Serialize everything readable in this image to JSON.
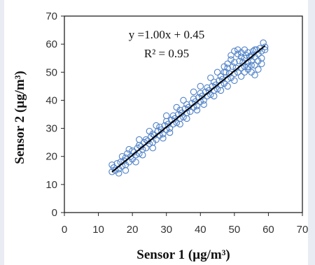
{
  "chart_data": {
    "type": "scatter",
    "xlabel": "Sensor 1 (µg/m³)",
    "ylabel": "Sensor 2 (µg/m³)",
    "xlim": [
      0,
      70
    ],
    "ylim": [
      0,
      70
    ],
    "xticks": [
      "0",
      "10",
      "20",
      "30",
      "40",
      "50",
      "60",
      "70"
    ],
    "yticks": [
      "0",
      "10",
      "20",
      "30",
      "40",
      "50",
      "60",
      "70"
    ],
    "grid": false,
    "fit": {
      "equation": "y =1.00x + 0.45",
      "r2_label": "R² = 0.95",
      "slope": 1.0,
      "intercept": 0.45,
      "x_range": [
        14,
        59
      ]
    },
    "series": [
      {
        "marker_color": "#4f81c7",
        "line_color": "#000000",
        "points": [
          [
            14,
            14.5
          ],
          [
            14.5,
            16
          ],
          [
            15,
            15
          ],
          [
            15.5,
            17.5
          ],
          [
            16,
            15.5
          ],
          [
            16.5,
            18
          ],
          [
            17,
            16.5
          ],
          [
            17.5,
            18.5
          ],
          [
            18,
            17
          ],
          [
            18,
            19.5
          ],
          [
            18.5,
            21
          ],
          [
            19,
            18
          ],
          [
            19.5,
            20
          ],
          [
            20,
            19
          ],
          [
            20,
            22
          ],
          [
            20.5,
            21.5
          ],
          [
            21,
            20.5
          ],
          [
            21.5,
            23
          ],
          [
            22,
            21
          ],
          [
            22,
            24
          ],
          [
            22.5,
            23.5
          ],
          [
            23,
            22.5
          ],
          [
            23.5,
            25
          ],
          [
            24,
            23
          ],
          [
            24,
            26
          ],
          [
            24.5,
            25.5
          ],
          [
            25,
            24.5
          ],
          [
            25.5,
            27
          ],
          [
            26,
            25
          ],
          [
            26,
            28
          ],
          [
            26.5,
            27.5
          ],
          [
            27,
            26
          ],
          [
            27.5,
            29
          ],
          [
            28,
            27.5
          ],
          [
            28,
            30.5
          ],
          [
            28.5,
            29.5
          ],
          [
            29,
            28
          ],
          [
            29.5,
            31
          ],
          [
            30,
            29.5
          ],
          [
            30,
            32.5
          ],
          [
            30.5,
            31.5
          ],
          [
            31,
            30
          ],
          [
            31.5,
            33
          ],
          [
            32,
            31.5
          ],
          [
            32,
            34.5
          ],
          [
            32.5,
            33.5
          ],
          [
            33,
            32
          ],
          [
            33.5,
            35
          ],
          [
            34,
            33.5
          ],
          [
            34,
            36.5
          ],
          [
            34.5,
            35.5
          ],
          [
            35,
            34
          ],
          [
            35.5,
            37
          ],
          [
            36,
            35.5
          ],
          [
            36,
            38.5
          ],
          [
            36.5,
            37.5
          ],
          [
            37,
            36
          ],
          [
            37.5,
            39
          ],
          [
            38,
            37.5
          ],
          [
            38,
            40.5
          ],
          [
            38.5,
            39.5
          ],
          [
            39,
            38
          ],
          [
            39.5,
            41
          ],
          [
            40,
            39.5
          ],
          [
            40,
            42.5
          ],
          [
            40.5,
            41.5
          ],
          [
            41,
            40
          ],
          [
            41.5,
            43
          ],
          [
            42,
            41.5
          ],
          [
            42,
            44.5
          ],
          [
            42.5,
            43.5
          ],
          [
            43,
            42
          ],
          [
            43.5,
            45
          ],
          [
            44,
            43.5
          ],
          [
            44,
            46.5
          ],
          [
            44.5,
            45.5
          ],
          [
            45,
            44
          ],
          [
            45.5,
            47
          ],
          [
            46,
            45.5
          ],
          [
            46,
            48.5
          ],
          [
            46.5,
            47.5
          ],
          [
            47,
            46
          ],
          [
            47.5,
            50
          ],
          [
            48,
            47.5
          ],
          [
            48,
            51.5
          ],
          [
            48.5,
            49.5
          ],
          [
            49,
            48
          ],
          [
            49.5,
            52
          ],
          [
            50,
            49.5
          ],
          [
            50,
            53.5
          ],
          [
            50.5,
            51.5
          ],
          [
            51,
            50
          ],
          [
            51.5,
            54
          ],
          [
            52,
            51.5
          ],
          [
            52,
            55.5
          ],
          [
            52.5,
            53.5
          ],
          [
            53,
            52
          ],
          [
            53.5,
            56
          ],
          [
            54,
            53.5
          ],
          [
            54,
            57
          ],
          [
            54.5,
            55.5
          ],
          [
            55,
            54
          ],
          [
            55.5,
            57.5
          ],
          [
            56,
            55.5
          ],
          [
            56.5,
            58
          ],
          [
            57,
            56.5
          ],
          [
            57.5,
            58.5
          ],
          [
            58,
            57.5
          ],
          [
            58.5,
            60.5
          ],
          [
            59,
            59
          ],
          [
            16,
            14
          ],
          [
            18,
            15
          ],
          [
            21,
            18
          ],
          [
            23,
            20.5
          ],
          [
            26,
            23
          ],
          [
            29,
            26.5
          ],
          [
            31,
            28.5
          ],
          [
            34,
            31.5
          ],
          [
            36,
            33.5
          ],
          [
            39,
            36.5
          ],
          [
            41,
            38.5
          ],
          [
            44,
            41.5
          ],
          [
            46,
            43.5
          ],
          [
            48,
            45
          ],
          [
            50,
            47
          ],
          [
            52,
            48.5
          ],
          [
            54,
            51
          ],
          [
            56,
            52.5
          ],
          [
            58,
            55
          ],
          [
            14,
            17
          ],
          [
            17,
            20
          ],
          [
            19,
            22.5
          ],
          [
            22,
            26
          ],
          [
            25,
            29
          ],
          [
            27,
            31
          ],
          [
            30,
            34.5
          ],
          [
            33,
            37.5
          ],
          [
            35,
            40
          ],
          [
            38,
            43
          ],
          [
            40,
            45
          ],
          [
            43,
            48
          ],
          [
            45,
            50
          ],
          [
            47,
            52
          ],
          [
            49,
            54.5
          ],
          [
            51,
            56.5
          ],
          [
            53,
            58
          ],
          [
            55,
            56
          ],
          [
            57,
            54
          ],
          [
            47,
            50
          ],
          [
            48,
            53
          ],
          [
            49,
            56
          ],
          [
            50,
            57.5
          ],
          [
            51,
            58
          ],
          [
            52,
            57
          ],
          [
            53,
            55
          ],
          [
            54,
            52
          ],
          [
            55,
            50
          ],
          [
            56,
            49
          ],
          [
            57,
            51
          ],
          [
            58,
            53
          ],
          [
            59,
            58
          ],
          [
            56,
            58
          ],
          [
            55,
            52.5
          ],
          [
            53,
            50
          ]
        ]
      }
    ]
  }
}
